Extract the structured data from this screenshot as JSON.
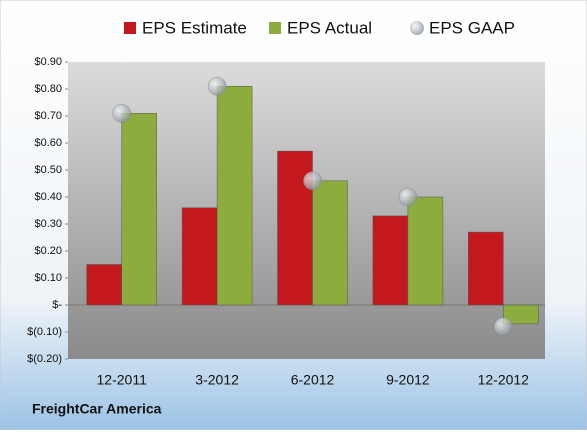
{
  "chart_data": {
    "type": "bar",
    "categories": [
      "12-2011",
      "3-2012",
      "6-2012",
      "9-2012",
      "12-2012"
    ],
    "series": [
      {
        "name": "EPS Estimate",
        "type": "bar",
        "color": "#c3191e",
        "values": [
          0.15,
          0.36,
          0.57,
          0.33,
          0.27
        ]
      },
      {
        "name": "EPS Actual",
        "type": "bar",
        "color": "#8cad3e",
        "values": [
          0.71,
          0.81,
          0.46,
          0.4,
          -0.07
        ]
      },
      {
        "name": "EPS GAAP",
        "type": "scatter",
        "color": "#a4acb4",
        "values": [
          0.71,
          0.81,
          0.46,
          0.4,
          -0.08
        ]
      }
    ],
    "ylim": [
      -0.2,
      0.9
    ],
    "yticks": [
      {
        "value": 0.9,
        "label": "$0.90"
      },
      {
        "value": 0.8,
        "label": "$0.80"
      },
      {
        "value": 0.7,
        "label": "$0.70"
      },
      {
        "value": 0.6,
        "label": "$0.60"
      },
      {
        "value": 0.5,
        "label": "$0.50"
      },
      {
        "value": 0.4,
        "label": "$0.40"
      },
      {
        "value": 0.3,
        "label": "$0.30"
      },
      {
        "value": 0.2,
        "label": "$0.20"
      },
      {
        "value": 0.1,
        "label": "$0.10"
      },
      {
        "value": 0,
        "label": "$-"
      },
      {
        "value": -0.1,
        "label": "$(0.10)"
      },
      {
        "value": -0.2,
        "label": "$(0.20)"
      }
    ],
    "legend": "top",
    "source": "FreightCar America"
  }
}
